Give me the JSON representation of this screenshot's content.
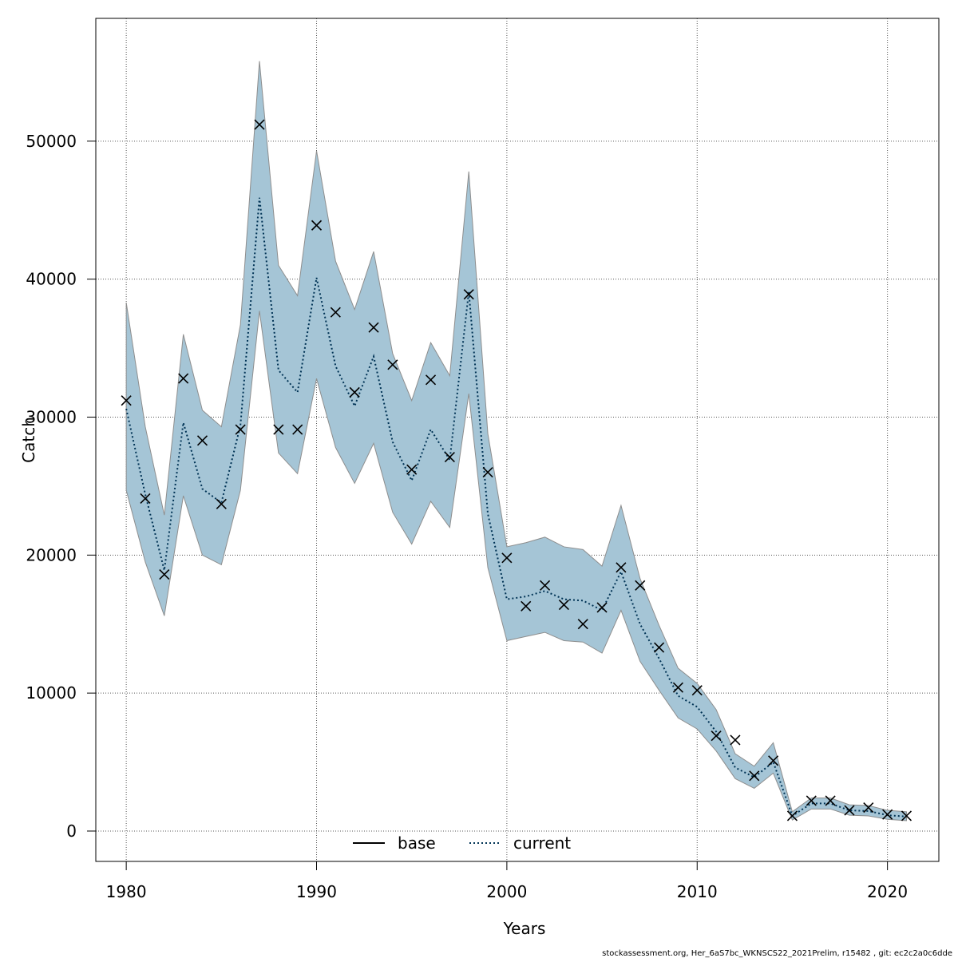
{
  "colors": {
    "band_fill": "#a5c5d6",
    "band_stroke": "#8e8e8e",
    "current_line": "#003355",
    "base_line": "#000000",
    "grid": "#555555",
    "markers": "#000000"
  },
  "legend": {
    "placement": "bottom-center",
    "entries": [
      {
        "label": "base",
        "style": "solid"
      },
      {
        "label": "current",
        "style": "dotted"
      }
    ]
  },
  "footer": "stockassessment.org, Her_6aS7bc_WKNSCS22_2021Prelim, r15482 , git: ec2c2a0c6dde",
  "chart_data": {
    "type": "line",
    "title": "",
    "xlabel": "Years",
    "ylabel": "Catch",
    "xlim": [
      1978.4,
      2022.7
    ],
    "ylim": [
      -2200,
      58900
    ],
    "xticks": [
      1980,
      1990,
      2000,
      2010,
      2020
    ],
    "yticks": [
      0,
      10000,
      20000,
      30000,
      40000,
      50000
    ],
    "grid": true,
    "x": [
      1980,
      1981,
      1982,
      1983,
      1984,
      1985,
      1986,
      1987,
      1988,
      1989,
      1990,
      1991,
      1992,
      1993,
      1994,
      1995,
      1996,
      1997,
      1998,
      1999,
      2000,
      2001,
      2002,
      2003,
      2004,
      2005,
      2006,
      2007,
      2008,
      2009,
      2010,
      2011,
      2012,
      2013,
      2014,
      2015,
      2016,
      2017,
      2018,
      2019,
      2020,
      2021
    ],
    "observed_catch": [
      31200,
      24100,
      18600,
      32800,
      28300,
      23700,
      29100,
      51200,
      29100,
      29100,
      43900,
      37600,
      31800,
      36500,
      33800,
      26200,
      32700,
      27100,
      38900,
      26000,
      19800,
      16300,
      17800,
      16400,
      15000,
      16200,
      19100,
      17800,
      13300,
      10400,
      10200,
      6900,
      6600,
      4000,
      5100,
      1100,
      2200,
      2200,
      1500,
      1700,
      1200,
      1100
    ],
    "series": [
      {
        "name": "current",
        "values": [
          30600,
          24400,
          18900,
          29600,
          24800,
          23800,
          29400,
          45900,
          33400,
          31800,
          40100,
          33700,
          30800,
          34400,
          28200,
          25400,
          29100,
          26900,
          39100,
          23000,
          16800,
          17000,
          17400,
          16800,
          16700,
          16000,
          18800,
          15000,
          12500,
          9800,
          9000,
          7200,
          4600,
          3900,
          5000,
          1100,
          2000,
          2000,
          1500,
          1450,
          1150,
          1050
        ]
      }
    ],
    "confidence_band": {
      "lower": [
        24700,
        19500,
        15600,
        24300,
        20000,
        19300,
        24700,
        37700,
        27400,
        25900,
        32800,
        27800,
        25200,
        28100,
        23100,
        20800,
        23900,
        22000,
        31700,
        19100,
        13800,
        14100,
        14400,
        13800,
        13700,
        12900,
        16000,
        12300,
        10200,
        8200,
        7400,
        5800,
        3800,
        3100,
        4200,
        800,
        1600,
        1600,
        1150,
        1100,
        850,
        750
      ],
      "upper": [
        38300,
        29300,
        22900,
        36000,
        30500,
        29300,
        36700,
        55800,
        41000,
        38800,
        49300,
        41300,
        37800,
        42000,
        34600,
        31200,
        35400,
        33000,
        47800,
        28800,
        20600,
        20900,
        21300,
        20600,
        20400,
        19200,
        23600,
        18300,
        14900,
        11800,
        10700,
        8800,
        5600,
        4700,
        6400,
        1400,
        2400,
        2400,
        1900,
        1850,
        1500,
        1400
      ]
    }
  }
}
